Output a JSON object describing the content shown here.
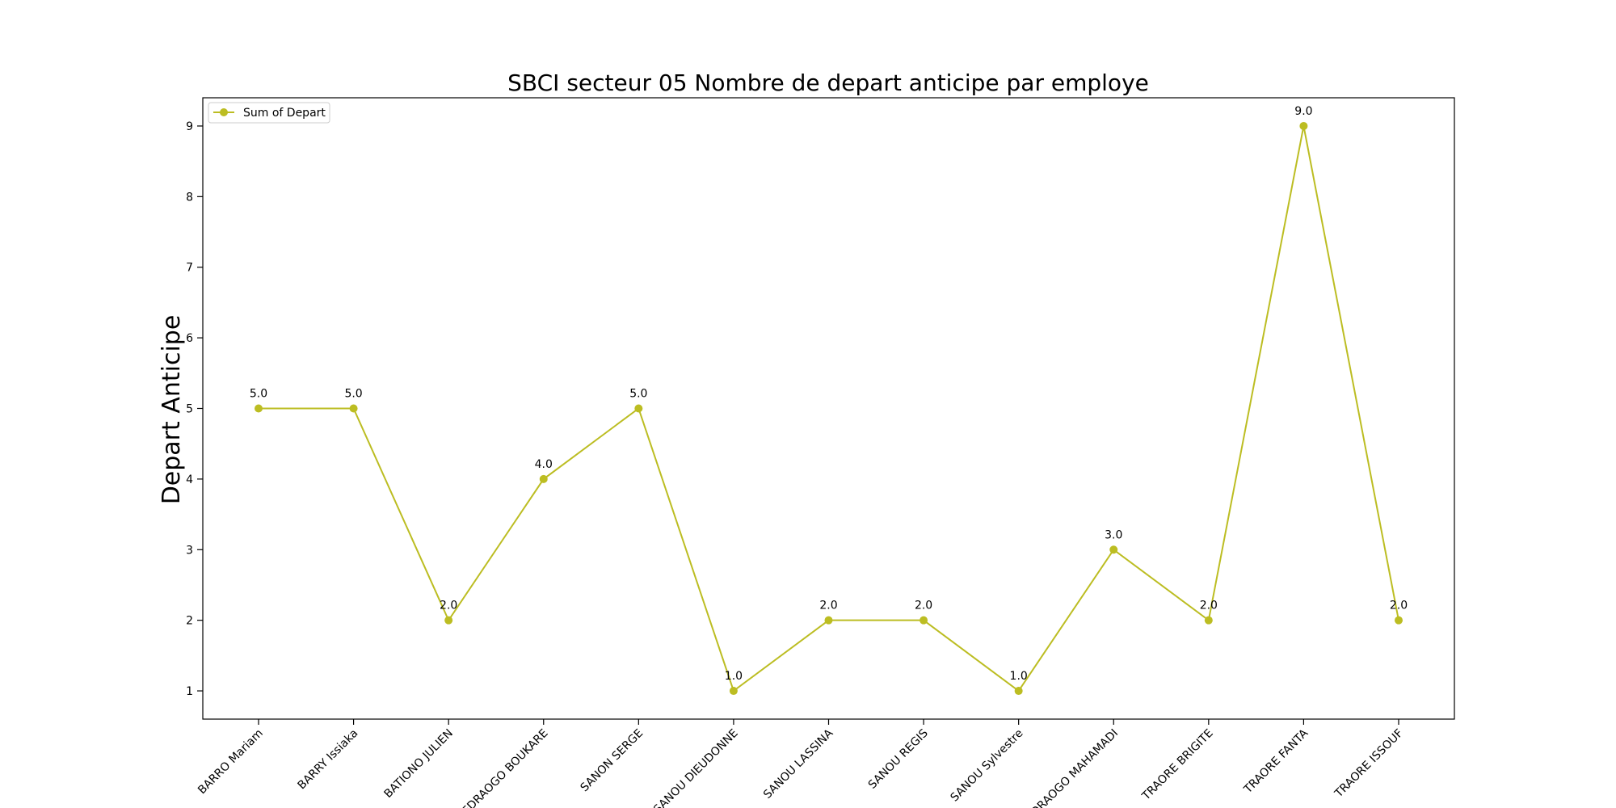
{
  "chart_data": {
    "type": "line",
    "title": "SBCI secteur 05 Nombre de depart anticipe par employe",
    "xlabel": "",
    "ylabel": "Depart Anticipe",
    "categories": [
      "BARRO Mariam",
      "BARRY Issiaka",
      "BATIONO JULIEN",
      "OUEDRAOGO BOUKARE",
      "SANON SERGE",
      "SANOU DIEUDONNE",
      "SANOU LASSINA",
      "SANOU REGIS",
      "SANOU Sylvestre",
      "OUEDRAOGO MAHAMADI",
      "TRAORE BRIGITE",
      "TRAORE FANTA",
      "TRAORE ISSOUF"
    ],
    "series": [
      {
        "name": "Sum of Depart",
        "values": [
          5,
          5,
          2,
          4,
          5,
          1,
          2,
          2,
          1,
          3,
          2,
          9,
          2
        ],
        "labels": [
          "5.0",
          "5.0",
          "2.0",
          "4.0",
          "5.0",
          "1.0",
          "2.0",
          "2.0",
          "1.0",
          "3.0",
          "2.0",
          "9.0",
          "2.0"
        ],
        "color": "#bcbd22"
      }
    ],
    "yticks": [
      1,
      2,
      3,
      4,
      5,
      6,
      7,
      8,
      9
    ],
    "ylim": [
      0.6,
      9.4
    ],
    "grid": false,
    "legend": "top-left"
  }
}
